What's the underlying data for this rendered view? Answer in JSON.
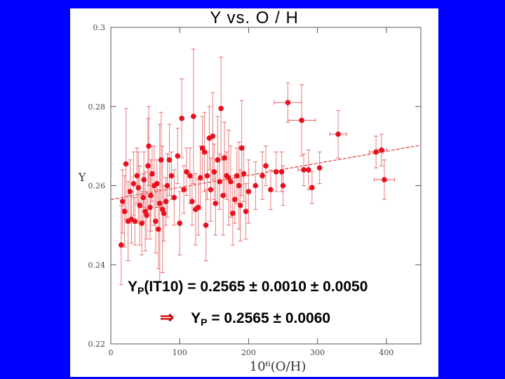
{
  "slide": {
    "title": "Y  vs.  O / H",
    "eq1_label": "Y",
    "eq1_sub": "P",
    "eq1_tag": "(IT10)",
    "eq1_value": "=  0.2565 ± 0.0010 ± 0.0050",
    "eq2_arrow": "⇒",
    "eq2_label": "Y",
    "eq2_sub": "P",
    "eq2_value": "=  0.2565 ± 0.0060"
  },
  "colors": {
    "background": "#0000ff",
    "points": "#e8101e",
    "errorbars": "#e66a6a",
    "fitline": "#e23a3a"
  },
  "chart_data": {
    "type": "scatter",
    "xlabel": "10⁶(O/H)",
    "ylabel": "Y",
    "xlim": [
      0,
      450
    ],
    "ylim": [
      0.22,
      0.3
    ],
    "xticks": [
      0,
      100,
      200,
      300,
      400
    ],
    "yticks": [
      0.22,
      0.24,
      0.26,
      0.28,
      0.3
    ],
    "fit_line": {
      "intercept": 0.2565,
      "slope": 3.05e-05
    },
    "points": [
      {
        "x": 15,
        "y": 0.245,
        "yerr": 0.01
      },
      {
        "x": 17,
        "y": 0.256,
        "yerr": 0.008
      },
      {
        "x": 20,
        "y": 0.2535,
        "yerr": 0.009
      },
      {
        "x": 22,
        "y": 0.2655,
        "yerr": 0.014
      },
      {
        "x": 25,
        "y": 0.251,
        "yerr": 0.01
      },
      {
        "x": 28,
        "y": 0.2585,
        "yerr": 0.008
      },
      {
        "x": 30,
        "y": 0.2515,
        "yerr": 0.006
      },
      {
        "x": 33,
        "y": 0.2605,
        "yerr": 0.008
      },
      {
        "x": 35,
        "y": 0.251,
        "yerr": 0.006
      },
      {
        "x": 38,
        "y": 0.2625,
        "yerr": 0.007
      },
      {
        "x": 40,
        "y": 0.2595,
        "yerr": 0.009
      },
      {
        "x": 42,
        "y": 0.255,
        "yerr": 0.01
      },
      {
        "x": 45,
        "y": 0.2505,
        "yerr": 0.008
      },
      {
        "x": 47,
        "y": 0.257,
        "yerr": 0.006
      },
      {
        "x": 48,
        "y": 0.2615,
        "yerr": 0.007
      },
      {
        "x": 50,
        "y": 0.2535,
        "yerr": 0.01
      },
      {
        "x": 52,
        "y": 0.2525,
        "yerr": 0.006
      },
      {
        "x": 54,
        "y": 0.265,
        "yerr": 0.012
      },
      {
        "x": 55,
        "y": 0.27,
        "yerr": 0.01
      },
      {
        "x": 57,
        "y": 0.2545,
        "yerr": 0.008
      },
      {
        "x": 58,
        "y": 0.2575,
        "yerr": 0.009
      },
      {
        "x": 60,
        "y": 0.263,
        "yerr": 0.007
      },
      {
        "x": 63,
        "y": 0.26,
        "yerr": 0.01
      },
      {
        "x": 65,
        "y": 0.251,
        "yerr": 0.008
      },
      {
        "x": 67,
        "y": 0.2605,
        "yerr": 0.006
      },
      {
        "x": 69,
        "y": 0.249,
        "yerr": 0.01
      },
      {
        "x": 71,
        "y": 0.2555,
        "yerr": 0.02
      },
      {
        "x": 73,
        "y": 0.2665,
        "yerr": 0.012
      },
      {
        "x": 75,
        "y": 0.254,
        "yerr": 0.016
      },
      {
        "x": 77,
        "y": 0.253,
        "yerr": 0.007
      },
      {
        "x": 80,
        "y": 0.256,
        "yerr": 0.006
      },
      {
        "x": 82,
        "y": 0.26,
        "yerr": 0.008
      },
      {
        "x": 85,
        "y": 0.2665,
        "yerr": 0.009
      },
      {
        "x": 88,
        "y": 0.2625,
        "yerr": 0.006
      },
      {
        "x": 92,
        "y": 0.257,
        "yerr": 0.007
      },
      {
        "x": 97,
        "y": 0.2675,
        "yerr": 0.007
      },
      {
        "x": 100,
        "y": 0.2505,
        "yerr": 0.008
      },
      {
        "x": 103,
        "y": 0.277,
        "yerr": 0.01
      },
      {
        "x": 106,
        "y": 0.259,
        "yerr": 0.006
      },
      {
        "x": 110,
        "y": 0.2635,
        "yerr": 0.006
      },
      {
        "x": 115,
        "y": 0.2625,
        "yerr": 0.007
      },
      {
        "x": 118,
        "y": 0.256,
        "yerr": 0.006
      },
      {
        "x": 120,
        "y": 0.2775,
        "yerr": 0.017
      },
      {
        "x": 123,
        "y": 0.254,
        "yerr": 0.009
      },
      {
        "x": 127,
        "y": 0.2545,
        "yerr": 0.007
      },
      {
        "x": 130,
        "y": 0.262,
        "yerr": 0.008
      },
      {
        "x": 133,
        "y": 0.2695,
        "yerr": 0.008
      },
      {
        "x": 136,
        "y": 0.2685,
        "yerr": 0.01
      },
      {
        "x": 138,
        "y": 0.25,
        "yerr": 0.009
      },
      {
        "x": 140,
        "y": 0.2625,
        "yerr": 0.006
      },
      {
        "x": 143,
        "y": 0.272,
        "yerr": 0.008
      },
      {
        "x": 145,
        "y": 0.259,
        "yerr": 0.008
      },
      {
        "x": 148,
        "y": 0.2725,
        "yerr": 0.011
      },
      {
        "x": 150,
        "y": 0.2635,
        "yerr": 0.007
      },
      {
        "x": 152,
        "y": 0.2555,
        "yerr": 0.008
      },
      {
        "x": 155,
        "y": 0.2665,
        "yerr": 0.011
      },
      {
        "x": 158,
        "y": 0.261,
        "yerr": 0.007
      },
      {
        "x": 160,
        "y": 0.2795,
        "yerr": 0.013
      },
      {
        "x": 163,
        "y": 0.2575,
        "yerr": 0.01
      },
      {
        "x": 165,
        "y": 0.267,
        "yerr": 0.009
      },
      {
        "x": 168,
        "y": 0.2625,
        "yerr": 0.006
      },
      {
        "x": 171,
        "y": 0.262,
        "yerr": 0.012
      },
      {
        "x": 174,
        "y": 0.261,
        "yerr": 0.009
      },
      {
        "x": 177,
        "y": 0.253,
        "yerr": 0.008
      },
      {
        "x": 180,
        "y": 0.2565,
        "yerr": 0.006
      },
      {
        "x": 183,
        "y": 0.2625,
        "yerr": 0.007
      },
      {
        "x": 186,
        "y": 0.26,
        "yerr": 0.011
      },
      {
        "x": 188,
        "y": 0.255,
        "yerr": 0.009
      },
      {
        "x": 190,
        "y": 0.2695,
        "yerr": 0.012
      },
      {
        "x": 193,
        "y": 0.263,
        "yerr": 0.007
      },
      {
        "x": 196,
        "y": 0.2535,
        "yerr": 0.007
      },
      {
        "x": 200,
        "y": 0.2585,
        "yerr": 0.008
      },
      {
        "x": 210,
        "y": 0.26,
        "yerr": 0.006
      },
      {
        "x": 220,
        "y": 0.2625,
        "yerr": 0.006
      },
      {
        "x": 225,
        "y": 0.265,
        "yerr": 0.005
      },
      {
        "x": 232,
        "y": 0.259,
        "yerr": 0.005
      },
      {
        "x": 240,
        "y": 0.2635,
        "yerr": 0.005
      },
      {
        "x": 248,
        "y": 0.2635,
        "yerr": 0.005
      },
      {
        "x": 250,
        "y": 0.26,
        "yerr": 0.005
      },
      {
        "x": 257,
        "y": 0.281,
        "yerr": 0.005,
        "xerr": 20
      },
      {
        "x": 277,
        "y": 0.2765,
        "yerr": 0.009,
        "xerr": 20
      },
      {
        "x": 280,
        "y": 0.264,
        "yerr": 0.004,
        "xerr": 8
      },
      {
        "x": 287,
        "y": 0.264,
        "yerr": 0.005
      },
      {
        "x": 292,
        "y": 0.2595,
        "yerr": 0.004
      },
      {
        "x": 303,
        "y": 0.2645,
        "yerr": 0.004
      },
      {
        "x": 330,
        "y": 0.273,
        "yerr": 0.006,
        "xerr": 12
      },
      {
        "x": 385,
        "y": 0.2685,
        "yerr": 0.004,
        "xerr": 10
      },
      {
        "x": 393,
        "y": 0.269,
        "yerr": 0.004,
        "xerr": 8
      },
      {
        "x": 397,
        "y": 0.2615,
        "yerr": 0.005,
        "xerr": 15
      }
    ]
  }
}
